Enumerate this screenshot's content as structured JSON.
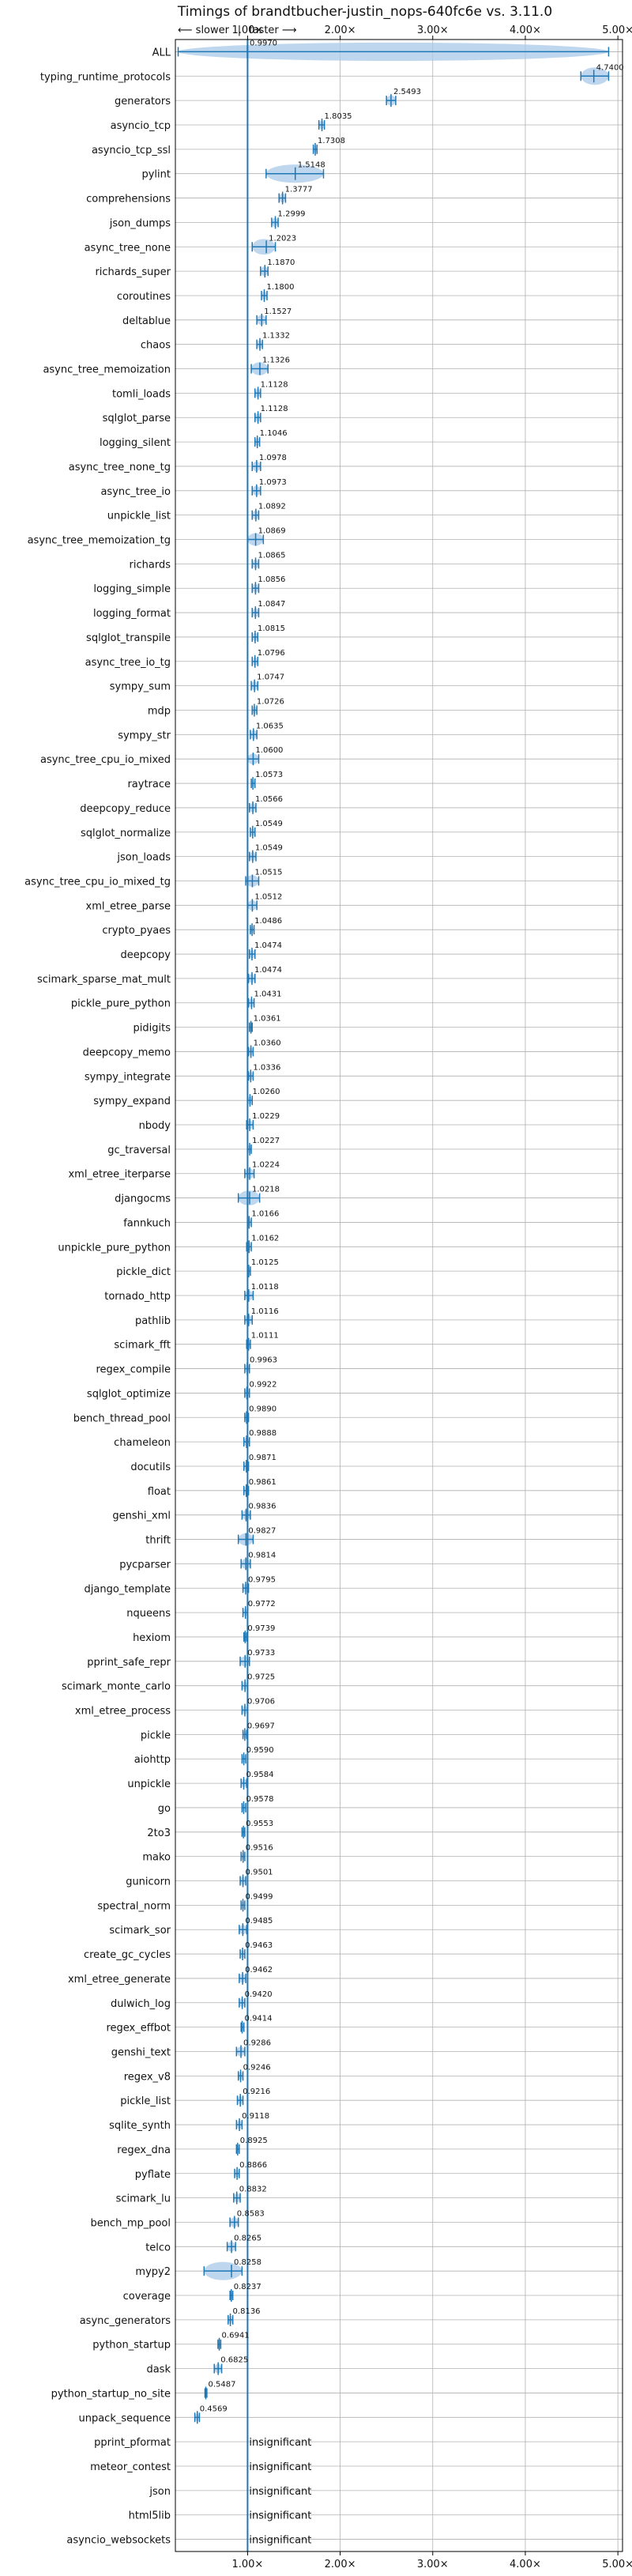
{
  "chart_data": {
    "type": "violin",
    "title": "Timings of brandtbucher-justin_nops-640fc6e vs. 3.11.0",
    "direction_labels": {
      "slower": "⟵ slower",
      "separator": "|",
      "faster": "faster ⟶"
    },
    "xlim": [
      0.22,
      5.05
    ],
    "xticks": [
      1.0,
      2.0,
      3.0,
      4.0,
      5.0
    ],
    "xtick_labels": [
      "1.00×",
      "2.00×",
      "3.00×",
      "4.00×",
      "5.00×"
    ],
    "reference_line": 1.0,
    "grid": true,
    "insignificant_label": "insignificant",
    "benchmarks": [
      {
        "name": "ALL",
        "value": 0.997,
        "label": "0.9970",
        "lo": 0.25,
        "hi": 4.9
      },
      {
        "name": "typing_runtime_protocols",
        "value": 4.74,
        "label": "4.7400",
        "lo": 4.6,
        "hi": 4.9
      },
      {
        "name": "generators",
        "value": 2.5493,
        "label": "2.5493",
        "lo": 2.5,
        "hi": 2.6
      },
      {
        "name": "asyncio_tcp",
        "value": 1.8035,
        "label": "1.8035",
        "lo": 1.77,
        "hi": 1.83
      },
      {
        "name": "asyncio_tcp_ssl",
        "value": 1.7308,
        "label": "1.7308",
        "lo": 1.71,
        "hi": 1.75
      },
      {
        "name": "pylint",
        "value": 1.5148,
        "label": "1.5148",
        "lo": 1.2,
        "hi": 1.82
      },
      {
        "name": "comprehensions",
        "value": 1.3777,
        "label": "1.3777",
        "lo": 1.34,
        "hi": 1.41
      },
      {
        "name": "json_dumps",
        "value": 1.2999,
        "label": "1.2999",
        "lo": 1.26,
        "hi": 1.33
      },
      {
        "name": "async_tree_none",
        "value": 1.2023,
        "label": "1.2023",
        "lo": 1.05,
        "hi": 1.3
      },
      {
        "name": "richards_super",
        "value": 1.187,
        "label": "1.1870",
        "lo": 1.14,
        "hi": 1.22
      },
      {
        "name": "coroutines",
        "value": 1.18,
        "label": "1.1800",
        "lo": 1.15,
        "hi": 1.21
      },
      {
        "name": "deltablue",
        "value": 1.1527,
        "label": "1.1527",
        "lo": 1.1,
        "hi": 1.2
      },
      {
        "name": "chaos",
        "value": 1.1332,
        "label": "1.1332",
        "lo": 1.1,
        "hi": 1.16
      },
      {
        "name": "async_tree_memoization",
        "value": 1.1326,
        "label": "1.1326",
        "lo": 1.04,
        "hi": 1.22
      },
      {
        "name": "tomli_loads",
        "value": 1.1128,
        "label": "1.1128",
        "lo": 1.08,
        "hi": 1.14
      },
      {
        "name": "sqlglot_parse",
        "value": 1.1128,
        "label": "1.1128",
        "lo": 1.08,
        "hi": 1.14
      },
      {
        "name": "logging_silent",
        "value": 1.1046,
        "label": "1.1046",
        "lo": 1.08,
        "hi": 1.13
      },
      {
        "name": "async_tree_none_tg",
        "value": 1.0978,
        "label": "1.0978",
        "lo": 1.05,
        "hi": 1.14
      },
      {
        "name": "async_tree_io",
        "value": 1.0973,
        "label": "1.0973",
        "lo": 1.05,
        "hi": 1.14
      },
      {
        "name": "unpickle_list",
        "value": 1.0892,
        "label": "1.0892",
        "lo": 1.05,
        "hi": 1.12
      },
      {
        "name": "async_tree_memoization_tg",
        "value": 1.0869,
        "label": "1.0869",
        "lo": 1.0,
        "hi": 1.17
      },
      {
        "name": "richards",
        "value": 1.0865,
        "label": "1.0865",
        "lo": 1.05,
        "hi": 1.12
      },
      {
        "name": "logging_simple",
        "value": 1.0856,
        "label": "1.0856",
        "lo": 1.05,
        "hi": 1.12
      },
      {
        "name": "logging_format",
        "value": 1.0847,
        "label": "1.0847",
        "lo": 1.05,
        "hi": 1.12
      },
      {
        "name": "sqlglot_transpile",
        "value": 1.0815,
        "label": "1.0815",
        "lo": 1.05,
        "hi": 1.11
      },
      {
        "name": "async_tree_io_tg",
        "value": 1.0796,
        "label": "1.0796",
        "lo": 1.05,
        "hi": 1.11
      },
      {
        "name": "sympy_sum",
        "value": 1.0747,
        "label": "1.0747",
        "lo": 1.04,
        "hi": 1.11
      },
      {
        "name": "mdp",
        "value": 1.0726,
        "label": "1.0726",
        "lo": 1.05,
        "hi": 1.1
      },
      {
        "name": "sympy_str",
        "value": 1.0635,
        "label": "1.0635",
        "lo": 1.03,
        "hi": 1.1
      },
      {
        "name": "async_tree_cpu_io_mixed",
        "value": 1.06,
        "label": "1.0600",
        "lo": 1.0,
        "hi": 1.12
      },
      {
        "name": "raytrace",
        "value": 1.0573,
        "label": "1.0573",
        "lo": 1.04,
        "hi": 1.08
      },
      {
        "name": "deepcopy_reduce",
        "value": 1.0566,
        "label": "1.0566",
        "lo": 1.02,
        "hi": 1.09
      },
      {
        "name": "sqlglot_normalize",
        "value": 1.0549,
        "label": "1.0549",
        "lo": 1.03,
        "hi": 1.08
      },
      {
        "name": "json_loads",
        "value": 1.0549,
        "label": "1.0549",
        "lo": 1.02,
        "hi": 1.09
      },
      {
        "name": "async_tree_cpu_io_mixed_tg",
        "value": 1.0515,
        "label": "1.0515",
        "lo": 0.98,
        "hi": 1.12
      },
      {
        "name": "xml_etree_parse",
        "value": 1.0512,
        "label": "1.0512",
        "lo": 1.0,
        "hi": 1.1
      },
      {
        "name": "crypto_pyaes",
        "value": 1.0486,
        "label": "1.0486",
        "lo": 1.03,
        "hi": 1.07
      },
      {
        "name": "deepcopy",
        "value": 1.0474,
        "label": "1.0474",
        "lo": 1.02,
        "hi": 1.08
      },
      {
        "name": "scimark_sparse_mat_mult",
        "value": 1.0474,
        "label": "1.0474",
        "lo": 1.01,
        "hi": 1.08
      },
      {
        "name": "pickle_pure_python",
        "value": 1.0431,
        "label": "1.0431",
        "lo": 1.01,
        "hi": 1.07
      },
      {
        "name": "pidigits",
        "value": 1.0361,
        "label": "1.0361",
        "lo": 1.02,
        "hi": 1.05
      },
      {
        "name": "deepcopy_memo",
        "value": 1.036,
        "label": "1.0360",
        "lo": 1.01,
        "hi": 1.06
      },
      {
        "name": "sympy_integrate",
        "value": 1.0336,
        "label": "1.0336",
        "lo": 1.01,
        "hi": 1.06
      },
      {
        "name": "sympy_expand",
        "value": 1.026,
        "label": "1.0260",
        "lo": 1.0,
        "hi": 1.05
      },
      {
        "name": "nbody",
        "value": 1.0229,
        "label": "1.0229",
        "lo": 0.99,
        "hi": 1.06
      },
      {
        "name": "gc_traversal",
        "value": 1.0227,
        "label": "1.0227",
        "lo": 1.0,
        "hi": 1.04
      },
      {
        "name": "xml_etree_iterparse",
        "value": 1.0224,
        "label": "1.0224",
        "lo": 0.97,
        "hi": 1.07
      },
      {
        "name": "djangocms",
        "value": 1.0218,
        "label": "1.0218",
        "lo": 0.9,
        "hi": 1.13
      },
      {
        "name": "fannkuch",
        "value": 1.0166,
        "label": "1.0166",
        "lo": 1.0,
        "hi": 1.04
      },
      {
        "name": "unpickle_pure_python",
        "value": 1.0162,
        "label": "1.0162",
        "lo": 0.99,
        "hi": 1.04
      },
      {
        "name": "pickle_dict",
        "value": 1.0125,
        "label": "1.0125",
        "lo": 1.0,
        "hi": 1.03
      },
      {
        "name": "tornado_http",
        "value": 1.0118,
        "label": "1.0118",
        "lo": 0.97,
        "hi": 1.06
      },
      {
        "name": "pathlib",
        "value": 1.0116,
        "label": "1.0116",
        "lo": 0.97,
        "hi": 1.05
      },
      {
        "name": "scimark_fft",
        "value": 1.0111,
        "label": "1.0111",
        "lo": 0.99,
        "hi": 1.03
      },
      {
        "name": "regex_compile",
        "value": 0.9963,
        "label": "0.9963",
        "lo": 0.97,
        "hi": 1.02
      },
      {
        "name": "sqlglot_optimize",
        "value": 0.9922,
        "label": "0.9922",
        "lo": 0.97,
        "hi": 1.02
      },
      {
        "name": "bench_thread_pool",
        "value": 0.989,
        "label": "0.9890",
        "lo": 0.97,
        "hi": 1.01
      },
      {
        "name": "chameleon",
        "value": 0.9888,
        "label": "0.9888",
        "lo": 0.96,
        "hi": 1.02
      },
      {
        "name": "docutils",
        "value": 0.9871,
        "label": "0.9871",
        "lo": 0.96,
        "hi": 1.01
      },
      {
        "name": "float",
        "value": 0.9861,
        "label": "0.9861",
        "lo": 0.96,
        "hi": 1.01
      },
      {
        "name": "genshi_xml",
        "value": 0.9836,
        "label": "0.9836",
        "lo": 0.94,
        "hi": 1.03
      },
      {
        "name": "thrift",
        "value": 0.9827,
        "label": "0.9827",
        "lo": 0.9,
        "hi": 1.06
      },
      {
        "name": "pycparser",
        "value": 0.9814,
        "label": "0.9814",
        "lo": 0.93,
        "hi": 1.03
      },
      {
        "name": "django_template",
        "value": 0.9795,
        "label": "0.9795",
        "lo": 0.95,
        "hi": 1.01
      },
      {
        "name": "nqueens",
        "value": 0.9772,
        "label": "0.9772",
        "lo": 0.95,
        "hi": 1.0
      },
      {
        "name": "hexiom",
        "value": 0.9739,
        "label": "0.9739",
        "lo": 0.96,
        "hi": 0.99
      },
      {
        "name": "pprint_safe_repr",
        "value": 0.9733,
        "label": "0.9733",
        "lo": 0.92,
        "hi": 1.02
      },
      {
        "name": "scimark_monte_carlo",
        "value": 0.9725,
        "label": "0.9725",
        "lo": 0.94,
        "hi": 1.0
      },
      {
        "name": "xml_etree_process",
        "value": 0.9706,
        "label": "0.9706",
        "lo": 0.94,
        "hi": 1.0
      },
      {
        "name": "pickle",
        "value": 0.9697,
        "label": "0.9697",
        "lo": 0.95,
        "hi": 0.99
      },
      {
        "name": "aiohttp",
        "value": 0.959,
        "label": "0.9590",
        "lo": 0.94,
        "hi": 0.98
      },
      {
        "name": "unpickle",
        "value": 0.9584,
        "label": "0.9584",
        "lo": 0.93,
        "hi": 0.99
      },
      {
        "name": "go",
        "value": 0.9578,
        "label": "0.9578",
        "lo": 0.94,
        "hi": 0.98
      },
      {
        "name": "2to3",
        "value": 0.9553,
        "label": "0.9553",
        "lo": 0.94,
        "hi": 0.97
      },
      {
        "name": "mako",
        "value": 0.9516,
        "label": "0.9516",
        "lo": 0.93,
        "hi": 0.97
      },
      {
        "name": "gunicorn",
        "value": 0.9501,
        "label": "0.9501",
        "lo": 0.92,
        "hi": 0.98
      },
      {
        "name": "spectral_norm",
        "value": 0.9499,
        "label": "0.9499",
        "lo": 0.93,
        "hi": 0.97
      },
      {
        "name": "scimark_sor",
        "value": 0.9485,
        "label": "0.9485",
        "lo": 0.91,
        "hi": 0.99
      },
      {
        "name": "create_gc_cycles",
        "value": 0.9463,
        "label": "0.9463",
        "lo": 0.92,
        "hi": 0.97
      },
      {
        "name": "xml_etree_generate",
        "value": 0.9462,
        "label": "0.9462",
        "lo": 0.91,
        "hi": 0.98
      },
      {
        "name": "dulwich_log",
        "value": 0.942,
        "label": "0.9420",
        "lo": 0.91,
        "hi": 0.97
      },
      {
        "name": "regex_effbot",
        "value": 0.9414,
        "label": "0.9414",
        "lo": 0.93,
        "hi": 0.96
      },
      {
        "name": "genshi_text",
        "value": 0.9286,
        "label": "0.9286",
        "lo": 0.88,
        "hi": 0.97
      },
      {
        "name": "regex_v8",
        "value": 0.9246,
        "label": "0.9246",
        "lo": 0.9,
        "hi": 0.95
      },
      {
        "name": "pickle_list",
        "value": 0.9216,
        "label": "0.9216",
        "lo": 0.89,
        "hi": 0.95
      },
      {
        "name": "sqlite_synth",
        "value": 0.9118,
        "label": "0.9118",
        "lo": 0.88,
        "hi": 0.94
      },
      {
        "name": "regex_dna",
        "value": 0.8925,
        "label": "0.8925",
        "lo": 0.88,
        "hi": 0.91
      },
      {
        "name": "pyflate",
        "value": 0.8866,
        "label": "0.8866",
        "lo": 0.86,
        "hi": 0.91
      },
      {
        "name": "scimark_lu",
        "value": 0.8832,
        "label": "0.8832",
        "lo": 0.85,
        "hi": 0.92
      },
      {
        "name": "bench_mp_pool",
        "value": 0.8583,
        "label": "0.8583",
        "lo": 0.81,
        "hi": 0.9
      },
      {
        "name": "telco",
        "value": 0.8265,
        "label": "0.8265",
        "lo": 0.78,
        "hi": 0.87
      },
      {
        "name": "mypy2",
        "value": 0.8258,
        "label": "0.8258",
        "lo": 0.53,
        "hi": 0.94
      },
      {
        "name": "coverage",
        "value": 0.8237,
        "label": "0.8237",
        "lo": 0.81,
        "hi": 0.84
      },
      {
        "name": "async_generators",
        "value": 0.8136,
        "label": "0.8136",
        "lo": 0.79,
        "hi": 0.84
      },
      {
        "name": "python_startup",
        "value": 0.6941,
        "label": "0.6941",
        "lo": 0.68,
        "hi": 0.71
      },
      {
        "name": "dask",
        "value": 0.6825,
        "label": "0.6825",
        "lo": 0.64,
        "hi": 0.72
      },
      {
        "name": "python_startup_no_site",
        "value": 0.5487,
        "label": "0.5487",
        "lo": 0.54,
        "hi": 0.56
      },
      {
        "name": "unpack_sequence",
        "value": 0.4569,
        "label": "0.4569",
        "lo": 0.43,
        "hi": 0.48
      },
      {
        "name": "pprint_pformat",
        "value": null,
        "label": "insignificant"
      },
      {
        "name": "meteor_contest",
        "value": null,
        "label": "insignificant"
      },
      {
        "name": "json",
        "value": null,
        "label": "insignificant"
      },
      {
        "name": "html5lib",
        "value": null,
        "label": "insignificant"
      },
      {
        "name": "asyncio_websockets",
        "value": null,
        "label": "insignificant"
      }
    ]
  },
  "colors": {
    "violin_fill": "#a9c9e8",
    "violin_edge": "#1f77b4",
    "reference_line": "#1f77b4",
    "grid": "#b0b0b0",
    "slower_label": "#d62728"
  }
}
